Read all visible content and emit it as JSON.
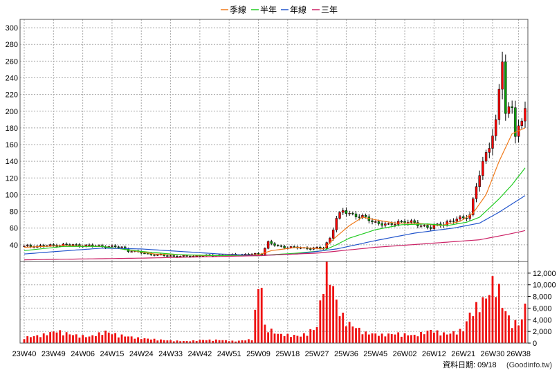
{
  "legend": {
    "items": [
      {
        "label": "季線",
        "color": "#f07a1a"
      },
      {
        "label": "半年",
        "color": "#22cc22"
      },
      {
        "label": "年線",
        "color": "#2255cc"
      },
      {
        "label": "三年",
        "color": "#cc2266"
      }
    ]
  },
  "footer": {
    "date_label": "資料日期: 09/18",
    "source": "(Goodinfo.tw)"
  },
  "colors": {
    "up": "#ff0000",
    "down": "#00a000",
    "volume": "#ee1111",
    "grid": "#a9a9a9"
  },
  "chart_data": {
    "type": "candlestick",
    "price_axis": {
      "ylim": [
        20,
        310
      ],
      "ticks": [
        40,
        60,
        80,
        100,
        120,
        140,
        160,
        180,
        200,
        220,
        240,
        260,
        280,
        300
      ]
    },
    "volume_axis": {
      "ylim": [
        0,
        14000
      ],
      "ticks": [
        "0",
        "2,000",
        "4,000",
        "6,000",
        "8,000",
        "10,000",
        "12,000"
      ],
      "tick_values": [
        0,
        2000,
        4000,
        6000,
        8000,
        10000,
        12000
      ]
    },
    "x_labels": [
      "23W40",
      "23W49",
      "24W06",
      "24W15",
      "24W24",
      "24W33",
      "24W42",
      "24W51",
      "25W09",
      "25W18",
      "25W27",
      "25W36",
      "25W45",
      "26W02",
      "26W12",
      "26W21",
      "26W30",
      "26W38"
    ],
    "x_label_positions": [
      0,
      9,
      18,
      27,
      36,
      45,
      54,
      63,
      72,
      81,
      90,
      99,
      108,
      117,
      126,
      135,
      144,
      152
    ],
    "weeks": 154,
    "close_anchors": [
      [
        0,
        38
      ],
      [
        8,
        39
      ],
      [
        12,
        40
      ],
      [
        20,
        39
      ],
      [
        30,
        37
      ],
      [
        32,
        33
      ],
      [
        40,
        28
      ],
      [
        48,
        26
      ],
      [
        56,
        27
      ],
      [
        64,
        28
      ],
      [
        73,
        29
      ],
      [
        75,
        43
      ],
      [
        78,
        38
      ],
      [
        86,
        36
      ],
      [
        92,
        36
      ],
      [
        94,
        48
      ],
      [
        96,
        72
      ],
      [
        98,
        80
      ],
      [
        104,
        73
      ],
      [
        108,
        67
      ],
      [
        112,
        63
      ],
      [
        115,
        68
      ],
      [
        120,
        66
      ],
      [
        125,
        60
      ],
      [
        128,
        65
      ],
      [
        133,
        70
      ],
      [
        137,
        76
      ],
      [
        139,
        110
      ],
      [
        142,
        150
      ],
      [
        145,
        185
      ],
      [
        147,
        262
      ],
      [
        148,
        195
      ],
      [
        150,
        210
      ],
      [
        151,
        175
      ],
      [
        153,
        183
      ],
      [
        154,
        205
      ]
    ],
    "volume_anchors": [
      [
        0,
        900
      ],
      [
        5,
        1200
      ],
      [
        10,
        1900
      ],
      [
        15,
        1300
      ],
      [
        20,
        1000
      ],
      [
        25,
        1800
      ],
      [
        27,
        1500
      ],
      [
        30,
        1200
      ],
      [
        35,
        800
      ],
      [
        40,
        600
      ],
      [
        45,
        400
      ],
      [
        50,
        300
      ],
      [
        55,
        500
      ],
      [
        60,
        500
      ],
      [
        65,
        300
      ],
      [
        70,
        600
      ],
      [
        72,
        8800
      ],
      [
        73,
        9000
      ],
      [
        74,
        2600
      ],
      [
        78,
        1400
      ],
      [
        85,
        1100
      ],
      [
        90,
        2500
      ],
      [
        92,
        9800
      ],
      [
        93,
        13600
      ],
      [
        95,
        8400
      ],
      [
        97,
        4800
      ],
      [
        100,
        3000
      ],
      [
        105,
        1600
      ],
      [
        110,
        1300
      ],
      [
        115,
        1500
      ],
      [
        120,
        1200
      ],
      [
        125,
        2000
      ],
      [
        130,
        1400
      ],
      [
        135,
        2100
      ],
      [
        137,
        4500
      ],
      [
        140,
        6200
      ],
      [
        142,
        7000
      ],
      [
        145,
        10500
      ],
      [
        147,
        6000
      ],
      [
        150,
        3000
      ],
      [
        153,
        3500
      ],
      [
        154,
        6000
      ]
    ],
    "ma_quarter": [
      [
        0,
        37
      ],
      [
        12,
        39
      ],
      [
        24,
        38
      ],
      [
        30,
        35
      ],
      [
        40,
        29
      ],
      [
        56,
        27
      ],
      [
        72,
        28
      ],
      [
        76,
        33
      ],
      [
        84,
        37
      ],
      [
        92,
        35
      ],
      [
        96,
        50
      ],
      [
        100,
        63
      ],
      [
        104,
        73
      ],
      [
        108,
        70
      ],
      [
        114,
        66
      ],
      [
        120,
        66
      ],
      [
        128,
        63
      ],
      [
        134,
        68
      ],
      [
        138,
        78
      ],
      [
        142,
        100
      ],
      [
        146,
        140
      ],
      [
        150,
        173
      ],
      [
        154,
        180
      ]
    ],
    "ma_half": [
      [
        0,
        33
      ],
      [
        12,
        38
      ],
      [
        24,
        38
      ],
      [
        36,
        32
      ],
      [
        48,
        28
      ],
      [
        60,
        27
      ],
      [
        72,
        27
      ],
      [
        84,
        30
      ],
      [
        92,
        33
      ],
      [
        96,
        40
      ],
      [
        100,
        48
      ],
      [
        108,
        58
      ],
      [
        116,
        64
      ],
      [
        124,
        65
      ],
      [
        130,
        63
      ],
      [
        136,
        67
      ],
      [
        140,
        73
      ],
      [
        146,
        95
      ],
      [
        150,
        112
      ],
      [
        154,
        132
      ]
    ],
    "ma_year": [
      [
        0,
        29
      ],
      [
        10,
        32
      ],
      [
        24,
        36
      ],
      [
        36,
        35
      ],
      [
        48,
        32
      ],
      [
        60,
        29
      ],
      [
        72,
        27
      ],
      [
        84,
        29
      ],
      [
        96,
        35
      ],
      [
        108,
        45
      ],
      [
        120,
        54
      ],
      [
        132,
        60
      ],
      [
        140,
        66
      ],
      [
        146,
        79
      ],
      [
        154,
        99
      ]
    ],
    "ma_3year": [
      [
        0,
        22
      ],
      [
        36,
        24
      ],
      [
        72,
        27
      ],
      [
        90,
        30
      ],
      [
        108,
        37
      ],
      [
        126,
        42
      ],
      [
        140,
        46
      ],
      [
        148,
        52
      ],
      [
        154,
        57
      ]
    ]
  }
}
